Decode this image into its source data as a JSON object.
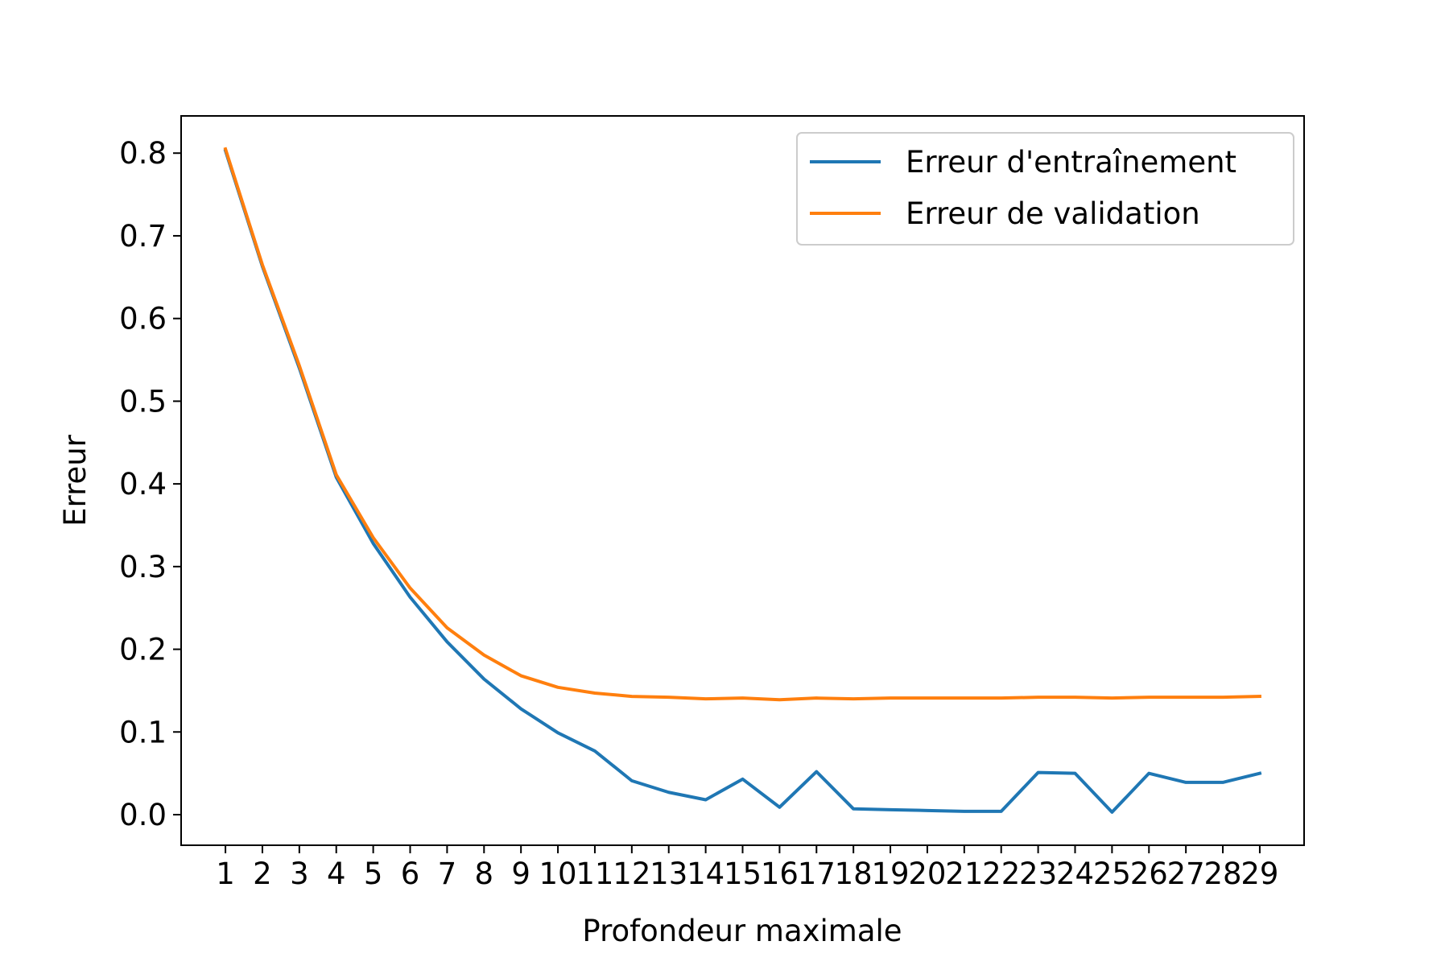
{
  "chart_data": {
    "type": "line",
    "xlabel": "Profondeur maximale",
    "ylabel": "Erreur",
    "x": [
      1,
      2,
      3,
      4,
      5,
      6,
      7,
      8,
      9,
      10,
      11,
      12,
      13,
      14,
      15,
      16,
      17,
      18,
      19,
      20,
      21,
      22,
      23,
      24,
      25,
      26,
      27,
      28,
      29
    ],
    "xticks": [
      "1",
      "2",
      "3",
      "4",
      "5",
      "6",
      "7",
      "8",
      "9",
      "10",
      "11",
      "12",
      "13",
      "14",
      "15",
      "16",
      "17",
      "18",
      "19",
      "20",
      "21",
      "22",
      "23",
      "24",
      "25",
      "26",
      "27",
      "28",
      "29"
    ],
    "xlim": [
      -0.2,
      30.2
    ],
    "ylim": [
      -0.037,
      0.845
    ],
    "yticks": [
      "0.0",
      "0.1",
      "0.2",
      "0.3",
      "0.4",
      "0.5",
      "0.6",
      "0.7",
      "0.8"
    ],
    "yticks_values": [
      0.0,
      0.1,
      0.2,
      0.3,
      0.4,
      0.5,
      0.6,
      0.7,
      0.8
    ],
    "grid": false,
    "legend_position": "upper right",
    "series": [
      {
        "name": "Erreur d'entraînement",
        "color": "#1f77b4",
        "values": [
          0.803,
          0.663,
          0.54,
          0.408,
          0.328,
          0.263,
          0.209,
          0.164,
          0.128,
          0.099,
          0.077,
          0.041,
          0.027,
          0.018,
          0.043,
          0.009,
          0.052,
          0.007,
          0.006,
          0.005,
          0.004,
          0.004,
          0.051,
          0.05,
          0.003,
          0.05,
          0.039,
          0.039,
          0.05
        ]
      },
      {
        "name": "Erreur de validation",
        "color": "#ff7f0e",
        "values": [
          0.805,
          0.665,
          0.543,
          0.411,
          0.335,
          0.274,
          0.226,
          0.193,
          0.168,
          0.154,
          0.147,
          0.143,
          0.142,
          0.14,
          0.141,
          0.139,
          0.141,
          0.14,
          0.141,
          0.141,
          0.141,
          0.141,
          0.142,
          0.142,
          0.141,
          0.142,
          0.142,
          0.142,
          0.143
        ]
      }
    ]
  }
}
